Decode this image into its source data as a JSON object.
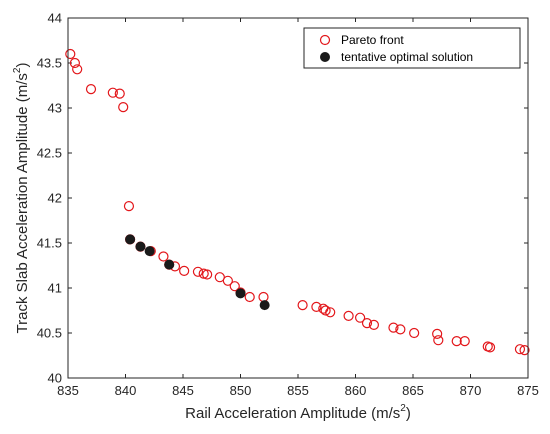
{
  "chart_data": {
    "type": "scatter",
    "xlabel": "Rail Acceleration Amplitude (m/s",
    "xlabel_sup": "2",
    "xlabel_tail": ")",
    "ylabel": "Track Slab Acceleration Amplitude (m/s",
    "ylabel_sup": "2",
    "ylabel_tail": ")",
    "xlim": [
      835,
      875
    ],
    "ylim": [
      40,
      44
    ],
    "xticks": [
      835,
      840,
      845,
      850,
      855,
      860,
      865,
      870,
      875
    ],
    "yticks": [
      40,
      40.5,
      41,
      41.5,
      42,
      42.5,
      43,
      43.5,
      44
    ],
    "legend_position": "top-right",
    "series": [
      {
        "name": "Pareto front",
        "marker": "open-circle",
        "color": "#e3171b",
        "points": [
          [
            835.2,
            43.6
          ],
          [
            835.6,
            43.5
          ],
          [
            835.8,
            43.43
          ],
          [
            837.0,
            43.21
          ],
          [
            838.9,
            43.17
          ],
          [
            839.5,
            43.16
          ],
          [
            839.8,
            43.01
          ],
          [
            840.3,
            41.91
          ],
          [
            840.4,
            41.54
          ],
          [
            841.3,
            41.46
          ],
          [
            842.2,
            41.41
          ],
          [
            843.3,
            41.35
          ],
          [
            843.8,
            41.26
          ],
          [
            844.3,
            41.24
          ],
          [
            845.1,
            41.19
          ],
          [
            846.3,
            41.18
          ],
          [
            846.8,
            41.16
          ],
          [
            847.1,
            41.15
          ],
          [
            848.2,
            41.12
          ],
          [
            848.9,
            41.08
          ],
          [
            849.5,
            41.02
          ],
          [
            850.0,
            40.95
          ],
          [
            850.8,
            40.9
          ],
          [
            852.0,
            40.9
          ],
          [
            855.4,
            40.81
          ],
          [
            856.6,
            40.79
          ],
          [
            857.2,
            40.77
          ],
          [
            857.4,
            40.75
          ],
          [
            857.8,
            40.73
          ],
          [
            859.4,
            40.69
          ],
          [
            860.4,
            40.67
          ],
          [
            861.0,
            40.61
          ],
          [
            861.6,
            40.59
          ],
          [
            863.3,
            40.56
          ],
          [
            863.9,
            40.54
          ],
          [
            865.1,
            40.5
          ],
          [
            867.1,
            40.49
          ],
          [
            867.2,
            40.42
          ],
          [
            868.8,
            40.41
          ],
          [
            869.5,
            40.41
          ],
          [
            871.5,
            40.35
          ],
          [
            871.7,
            40.34
          ],
          [
            874.3,
            40.32
          ],
          [
            874.7,
            40.31
          ]
        ]
      },
      {
        "name": "tentative optimal solution",
        "marker": "filled-circle",
        "color": "#1a1a1a",
        "points": [
          [
            840.4,
            41.54
          ],
          [
            841.3,
            41.46
          ],
          [
            842.1,
            41.41
          ],
          [
            843.8,
            41.26
          ],
          [
            850.0,
            40.94
          ],
          [
            852.1,
            40.81
          ]
        ]
      }
    ]
  }
}
